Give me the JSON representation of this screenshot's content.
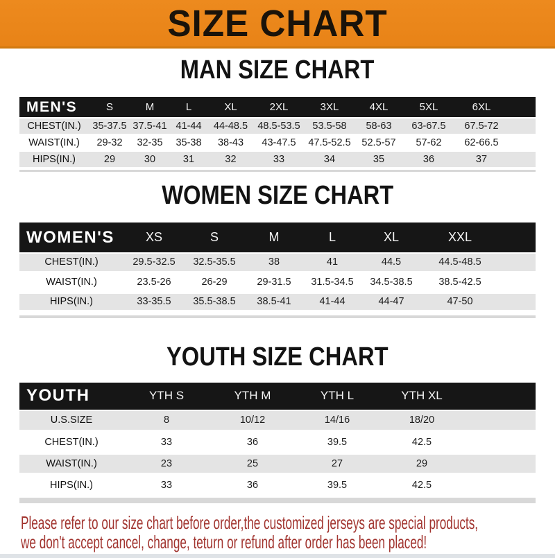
{
  "banner": {
    "title": "SIZE CHART"
  },
  "chart_data": [
    {
      "type": "table",
      "title": "MAN SIZE CHART",
      "corner_label": "MEN'S",
      "columns": [
        "S",
        "M",
        "L",
        "XL",
        "2XL",
        "3XL",
        "4XL",
        "5XL",
        "6XL"
      ],
      "rows": [
        {
          "label": "CHEST(IN.)",
          "values": [
            "35-37.5",
            "37.5-41",
            "41-44",
            "44-48.5",
            "48.5-53.5",
            "53.5-58",
            "58-63",
            "63-67.5",
            "67.5-72"
          ]
        },
        {
          "label": "WAIST(IN.)",
          "values": [
            "29-32",
            "32-35",
            "35-38",
            "38-43",
            "43-47.5",
            "47.5-52.5",
            "52.5-57",
            "57-62",
            "62-66.5"
          ]
        },
        {
          "label": "HIPS(IN.)",
          "values": [
            "29",
            "30",
            "31",
            "32",
            "33",
            "34",
            "35",
            "36",
            "37"
          ]
        }
      ]
    },
    {
      "type": "table",
      "title": "WOMEN SIZE CHART",
      "corner_label": "WOMEN'S",
      "columns": [
        "XS",
        "S",
        "M",
        "L",
        "XL",
        "XXL"
      ],
      "rows": [
        {
          "label": "CHEST(IN.)",
          "values": [
            "29.5-32.5",
            "32.5-35.5",
            "38",
            "41",
            "44.5",
            "44.5-48.5"
          ]
        },
        {
          "label": "WAIST(IN.)",
          "values": [
            "23.5-26",
            "26-29",
            "29-31.5",
            "31.5-34.5",
            "34.5-38.5",
            "38.5-42.5"
          ]
        },
        {
          "label": "HIPS(IN.)",
          "values": [
            "33-35.5",
            "35.5-38.5",
            "38.5-41",
            "41-44",
            "44-47",
            "47-50"
          ]
        }
      ]
    },
    {
      "type": "table",
      "title": "YOUTH SIZE CHART",
      "corner_label": "YOUTH",
      "columns": [
        "YTH S",
        "YTH M",
        "YTH L",
        "YTH XL"
      ],
      "rows": [
        {
          "label": "U.S.SIZE",
          "values": [
            "8",
            "10/12",
            "14/16",
            "18/20"
          ]
        },
        {
          "label": "CHEST(IN.)",
          "values": [
            "33",
            "36",
            "39.5",
            "42.5"
          ]
        },
        {
          "label": "WAIST(IN.)",
          "values": [
            "23",
            "25",
            "27",
            "29"
          ]
        },
        {
          "label": "HIPS(IN.)",
          "values": [
            "33",
            "36",
            "39.5",
            "42.5"
          ]
        }
      ]
    }
  ],
  "footer": {
    "line1": "Please refer to our size chart before order,the customized jerseys are special products,",
    "line2": "we don't accept cancel, change, teturn or refund after order has been placed!"
  },
  "colors": {
    "banner_orange": "#ed8a1e",
    "banner_orange_deep": "#e88317",
    "banner_title_black": "#1a130a",
    "bar_black": "#161616",
    "row_shade_gray": "#e4e4e4",
    "footer_red": "#a23530"
  }
}
